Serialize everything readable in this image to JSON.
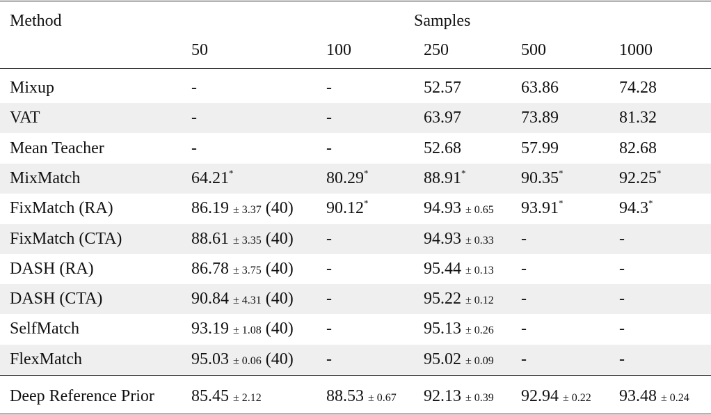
{
  "table": {
    "header": {
      "method": "Method",
      "samples": "Samples",
      "columns": [
        "50",
        "100",
        "250",
        "500",
        "1000"
      ]
    },
    "rows": [
      {
        "method": "Mixup",
        "cells": [
          {
            "value": "-"
          },
          {
            "value": "-"
          },
          {
            "value": "52.57"
          },
          {
            "value": "63.86"
          },
          {
            "value": "74.28"
          }
        ]
      },
      {
        "method": "VAT",
        "cells": [
          {
            "value": "-"
          },
          {
            "value": "-"
          },
          {
            "value": "63.97"
          },
          {
            "value": "73.89"
          },
          {
            "value": "81.32"
          }
        ]
      },
      {
        "method": "Mean Teacher",
        "cells": [
          {
            "value": "-"
          },
          {
            "value": "-"
          },
          {
            "value": "52.68"
          },
          {
            "value": "57.99"
          },
          {
            "value": "82.68"
          }
        ]
      },
      {
        "method": "MixMatch",
        "cells": [
          {
            "value": "64.21",
            "mark": "*"
          },
          {
            "value": "80.29",
            "mark": "*"
          },
          {
            "value": "88.91",
            "mark": "*"
          },
          {
            "value": "90.35",
            "mark": "*"
          },
          {
            "value": "92.25",
            "mark": "*"
          }
        ]
      },
      {
        "method": "FixMatch (RA)",
        "cells": [
          {
            "value": "86.19",
            "std": "± 3.37",
            "note": "(40)"
          },
          {
            "value": "90.12",
            "mark": "*"
          },
          {
            "value": "94.93",
            "std": "± 0.65"
          },
          {
            "value": "93.91",
            "mark": "*"
          },
          {
            "value": "94.3",
            "mark": "*"
          }
        ]
      },
      {
        "method": "FixMatch (CTA)",
        "cells": [
          {
            "value": "88.61",
            "std": "± 3.35",
            "note": "(40)"
          },
          {
            "value": "-"
          },
          {
            "value": "94.93",
            "std": "± 0.33"
          },
          {
            "value": "-"
          },
          {
            "value": "-"
          }
        ]
      },
      {
        "method": "DASH (RA)",
        "cells": [
          {
            "value": "86.78",
            "std": "± 3.75",
            "note": "(40)"
          },
          {
            "value": "-"
          },
          {
            "value": "95.44",
            "std": "± 0.13"
          },
          {
            "value": "-"
          },
          {
            "value": "-"
          }
        ]
      },
      {
        "method": "DASH (CTA)",
        "cells": [
          {
            "value": "90.84",
            "std": "± 4.31",
            "note": "(40)"
          },
          {
            "value": "-"
          },
          {
            "value": "95.22",
            "std": "± 0.12"
          },
          {
            "value": "-"
          },
          {
            "value": "-"
          }
        ]
      },
      {
        "method": "SelfMatch",
        "cells": [
          {
            "value": "93.19",
            "std": "± 1.08",
            "note": "(40)"
          },
          {
            "value": "-"
          },
          {
            "value": "95.13",
            "std": "± 0.26"
          },
          {
            "value": "-"
          },
          {
            "value": "-"
          }
        ]
      },
      {
        "method": "FlexMatch",
        "cells": [
          {
            "value": "95.03",
            "std": "± 0.06",
            "note": "(40)"
          },
          {
            "value": "-"
          },
          {
            "value": "95.02",
            "std": "± 0.09"
          },
          {
            "value": "-"
          },
          {
            "value": "-"
          }
        ]
      }
    ],
    "final_row": {
      "method": "Deep Reference Prior",
      "cells": [
        {
          "value": "85.45",
          "std": "± 2.12"
        },
        {
          "value": "88.53",
          "std": "± 0.67"
        },
        {
          "value": "92.13",
          "std": "± 0.39"
        },
        {
          "value": "92.94",
          "std": "± 0.22"
        },
        {
          "value": "93.48",
          "std": "± 0.24"
        }
      ]
    }
  }
}
